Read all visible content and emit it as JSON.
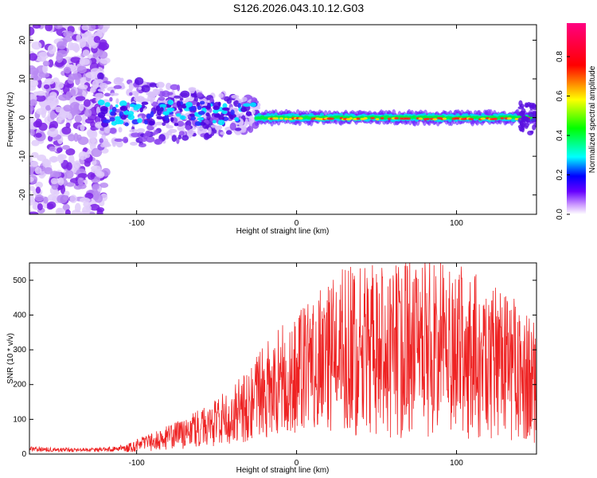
{
  "title": "S126.2026.043.10.12.G03",
  "chart_data": [
    {
      "type": "heatmap",
      "xlabel": "Height of straight line (km)",
      "ylabel": "Frequency (Hz)",
      "xlim": [
        -167,
        150
      ],
      "ylim": [
        -25,
        24
      ],
      "xticks": [
        -100,
        0,
        100
      ],
      "yticks": [
        -20,
        -10,
        0,
        10,
        20
      ],
      "colorbar": {
        "label": "Normalized spectral amplitude",
        "range": [
          0,
          0.97
        ],
        "ticks": [
          0.0,
          0.2,
          0.4,
          0.6,
          0.8
        ],
        "tick_labels": [
          "0.0",
          "0.2",
          "0.4",
          "0.6",
          "0.8"
        ],
        "colormap": [
          "#ffffff",
          "#6600ff",
          "#0000ff",
          "#00ffff",
          "#00ff00",
          "#ffff00",
          "#ff0000",
          "#ff0080"
        ]
      },
      "description_regions": [
        {
          "x_range": [
            -167,
            -125
          ],
          "freq_range": [
            -25,
            24
          ],
          "amplitude": 0.05
        },
        {
          "x_range": [
            -125,
            -25
          ],
          "freq_range": [
            -5,
            8
          ],
          "amplitude": 0.15
        },
        {
          "x_range": [
            -25,
            150
          ],
          "freq_range": [
            -2,
            2
          ],
          "amplitude": 0.6
        }
      ]
    },
    {
      "type": "line",
      "xlabel": "Height of straight line (km)",
      "ylabel": "SNR (10 * v/v)",
      "xlim": [
        -167,
        150
      ],
      "ylim": [
        0,
        550
      ],
      "xticks": [
        -100,
        0,
        100
      ],
      "yticks": [
        0,
        100,
        200,
        300,
        400,
        500
      ],
      "series": [
        {
          "name": "SNR",
          "color": "#ee2222",
          "x": [
            -167,
            -150,
            -130,
            -110,
            -90,
            -70,
            -50,
            -30,
            -15,
            -10,
            0,
            10,
            20,
            40,
            60,
            80,
            100,
            115,
            130,
            150
          ],
          "y": [
            15,
            12,
            12,
            15,
            35,
            60,
            90,
            140,
            200,
            220,
            230,
            260,
            280,
            300,
            290,
            320,
            300,
            280,
            260,
            200
          ]
        }
      ]
    }
  ]
}
